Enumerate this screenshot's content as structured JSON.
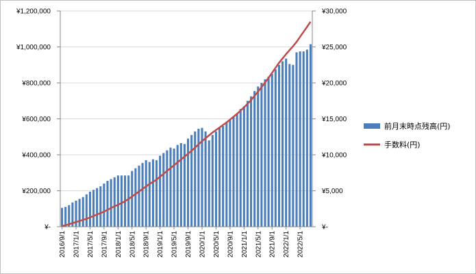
{
  "chart_data": {
    "type": "bar+line",
    "title": "",
    "xlabel": "",
    "ylabel": "",
    "y2label": "",
    "grid": "horizontal",
    "legend_position": "right",
    "colors": {
      "bar": "#4a7ebb",
      "line": "#be4b48",
      "grid": "#d9d9d9",
      "axis": "#868686"
    },
    "x": [
      "2016/9/1",
      "2016/10/1",
      "2016/11/1",
      "2016/12/1",
      "2017/1/1",
      "2017/2/1",
      "2017/3/1",
      "2017/4/1",
      "2017/5/1",
      "2017/6/1",
      "2017/7/1",
      "2017/8/1",
      "2017/9/1",
      "2017/10/1",
      "2017/11/1",
      "2017/12/1",
      "2018/1/1",
      "2018/2/1",
      "2018/3/1",
      "2018/4/1",
      "2018/5/1",
      "2018/6/1",
      "2018/7/1",
      "2018/8/1",
      "2018/9/1",
      "2018/10/1",
      "2018/11/1",
      "2018/12/1",
      "2019/1/1",
      "2019/2/1",
      "2019/3/1",
      "2019/4/1",
      "2019/5/1",
      "2019/6/1",
      "2019/7/1",
      "2019/8/1",
      "2019/9/1",
      "2019/10/1",
      "2019/11/1",
      "2019/12/1",
      "2020/1/1",
      "2020/2/1",
      "2020/3/1",
      "2020/4/1",
      "2020/5/1",
      "2020/6/1",
      "2020/7/1",
      "2020/8/1",
      "2020/9/1",
      "2020/10/1",
      "2020/11/1",
      "2020/12/1",
      "2021/1/1",
      "2021/2/1",
      "2021/3/1",
      "2021/4/1",
      "2021/5/1",
      "2021/6/1",
      "2021/7/1",
      "2021/8/1",
      "2021/9/1",
      "2021/10/1",
      "2021/11/1",
      "2021/12/1",
      "2022/1/1",
      "2022/2/1",
      "2022/3/1",
      "2022/4/1",
      "2022/5/1",
      "2022/6/1",
      "2022/7/1",
      "2022/8/1"
    ],
    "x_tick_labels": [
      "2016/9/1",
      "2017/1/1",
      "2017/5/1",
      "2017/9/1",
      "2018/1/1",
      "2018/5/1",
      "2018/9/1",
      "2019/1/1",
      "2019/5/1",
      "2019/9/1",
      "2020/1/1",
      "2020/5/1",
      "2020/9/1",
      "2021/1/1",
      "2021/5/1",
      "2021/9/1",
      "2022/1/1",
      "2022/5/1"
    ],
    "y_left": {
      "ticks": [
        "¥-",
        "¥200,000",
        "¥400,000",
        "¥600,000",
        "¥800,000",
        "¥1,000,000",
        "¥1,200,000"
      ],
      "range": [
        0,
        1200000
      ]
    },
    "y_right": {
      "ticks": [
        "¥-",
        "¥5,000",
        "¥10,000",
        "¥15,000",
        "¥20,000",
        "¥25,000",
        "¥30,000"
      ],
      "range": [
        0,
        30000
      ]
    },
    "series": [
      {
        "name": "前月末時点残高(円)",
        "type": "bar",
        "axis": "left",
        "values": [
          105000,
          110000,
          120000,
          135000,
          145000,
          155000,
          165000,
          180000,
          195000,
          205000,
          215000,
          225000,
          240000,
          255000,
          265000,
          275000,
          285000,
          285000,
          285000,
          285000,
          310000,
          325000,
          340000,
          355000,
          370000,
          360000,
          375000,
          370000,
          395000,
          410000,
          425000,
          440000,
          435000,
          455000,
          465000,
          460000,
          490000,
          510000,
          530000,
          545000,
          550000,
          530000,
          480000,
          510000,
          530000,
          550000,
          560000,
          580000,
          595000,
          610000,
          630000,
          655000,
          670000,
          700000,
          725000,
          755000,
          780000,
          800000,
          820000,
          835000,
          850000,
          875000,
          900000,
          920000,
          935000,
          905000,
          900000,
          970000,
          975000,
          975000,
          985000,
          1015000
        ]
      },
      {
        "name": "手数料(円)",
        "type": "line",
        "axis": "right",
        "values": [
          100,
          200,
          350,
          500,
          650,
          800,
          950,
          1100,
          1300,
          1500,
          1700,
          1900,
          2100,
          2350,
          2600,
          2850,
          3050,
          3300,
          3550,
          3850,
          4200,
          4550,
          4900,
          5250,
          5600,
          5950,
          6250,
          6550,
          6950,
          7350,
          7750,
          8150,
          8550,
          8950,
          9350,
          9750,
          10150,
          10550,
          11000,
          11450,
          11900,
          12300,
          12700,
          13100,
          13450,
          13800,
          14150,
          14500,
          14900,
          15300,
          15700,
          16150,
          16600,
          17100,
          17600,
          18200,
          18800,
          19400,
          20050,
          20700,
          21400,
          22100,
          22800,
          23400,
          24000,
          24550,
          25100,
          25700,
          26400,
          27100,
          27800,
          28500
        ]
      }
    ]
  }
}
